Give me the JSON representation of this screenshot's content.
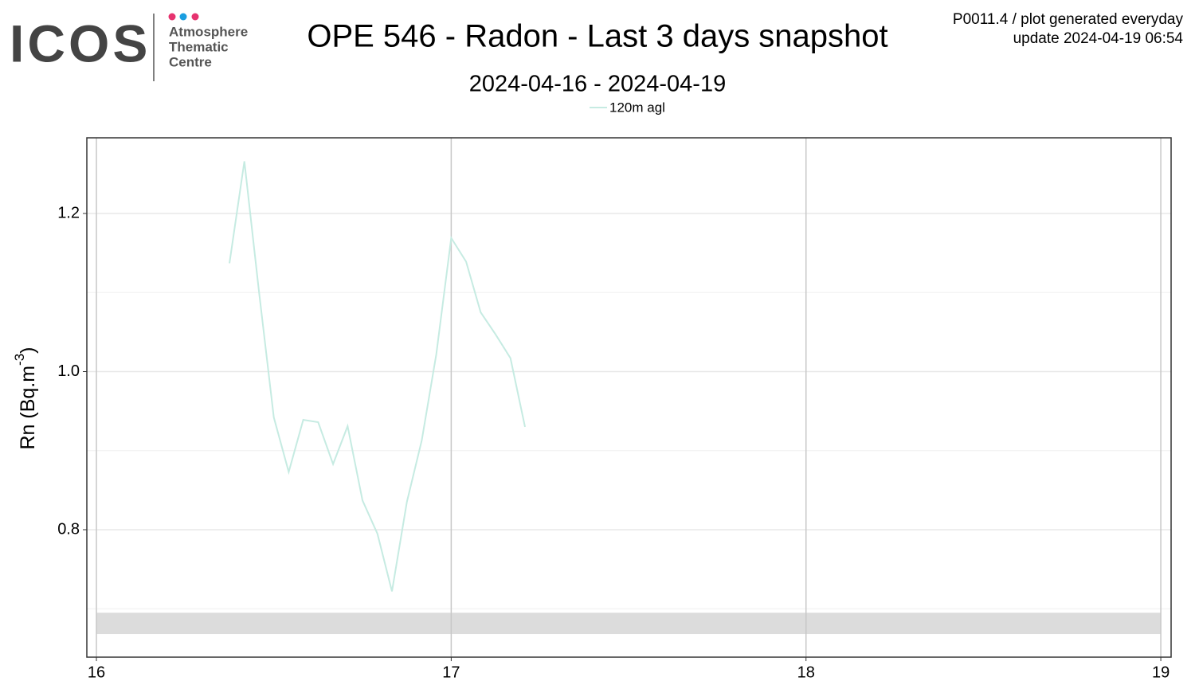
{
  "chart_data": {
    "type": "line",
    "logo": {
      "mark": "ICOS",
      "lines": [
        "Atmosphere",
        "Thematic",
        "Centre"
      ]
    },
    "title": "OPE 546 - Radon - Last 3 days snapshot",
    "subtitle": "2024-04-16 - 2024-04-19",
    "header_right": [
      "P0011.4 / plot generated everyday",
      "update  2024-04-19 06:54"
    ],
    "ylabel_parts": [
      "Rn (Bq.m",
      "-3",
      ")"
    ],
    "x": [
      16.375,
      16.417,
      16.458,
      16.5,
      16.542,
      16.583,
      16.625,
      16.667,
      16.708,
      16.75,
      16.792,
      16.833,
      16.875,
      16.917,
      16.958,
      17.0,
      17.042,
      17.083,
      17.125,
      17.167,
      17.208
    ],
    "series": [
      {
        "name": "120m agl",
        "color": "#c6ebe2",
        "values": [
          1.137,
          1.266,
          1.102,
          0.942,
          0.873,
          0.939,
          0.936,
          0.883,
          0.931,
          0.837,
          0.795,
          0.722,
          0.835,
          0.913,
          1.022,
          1.169,
          1.139,
          1.075,
          1.047,
          1.017,
          0.93
        ]
      }
    ],
    "xlim": [
      15.973,
      19.029
    ],
    "ylim": [
      0.6388,
      1.2957
    ],
    "xticks": [
      16,
      17,
      18,
      19
    ],
    "yticks": [
      0.8,
      {
        "value": 1,
        "label": "1.0"
      },
      1.2
    ],
    "yminor": [
      0.7,
      0.9,
      1.1
    ],
    "shaded_band": {
      "ymin": 0.668,
      "ymax": 0.695,
      "color": "#dcdcdc"
    },
    "grid": true,
    "legend": "top"
  }
}
